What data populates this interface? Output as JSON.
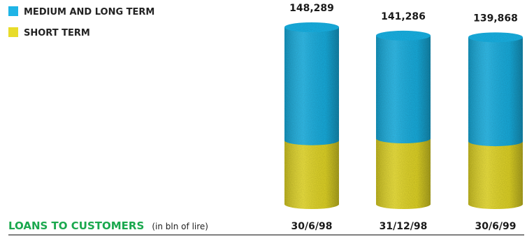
{
  "chart_data": {
    "type": "bar",
    "style": "stacked 3D cylinders",
    "title": "LOANS TO CUSTOMERS",
    "subtitle": "(in bln of lire)",
    "categories": [
      "30/6/98",
      "31/12/98",
      "30/6/99"
    ],
    "totals": [
      148289,
      141286,
      139868
    ],
    "total_labels": [
      "148,289",
      "141,286",
      "139,868"
    ],
    "series": [
      {
        "name": "MEDIUM AND LONG TERM",
        "color": "#1fb4e6",
        "values": [
          94789,
          86186,
          87168
        ]
      },
      {
        "name": "SHORT TERM",
        "color": "#e8dc2a",
        "values": [
          53500,
          55100,
          52700
        ]
      }
    ],
    "ylim": [
      0,
      160000
    ],
    "legend_position": "top-left",
    "grid": false,
    "colors": {
      "title": "#1aa84e",
      "baseline": "#333333"
    }
  }
}
